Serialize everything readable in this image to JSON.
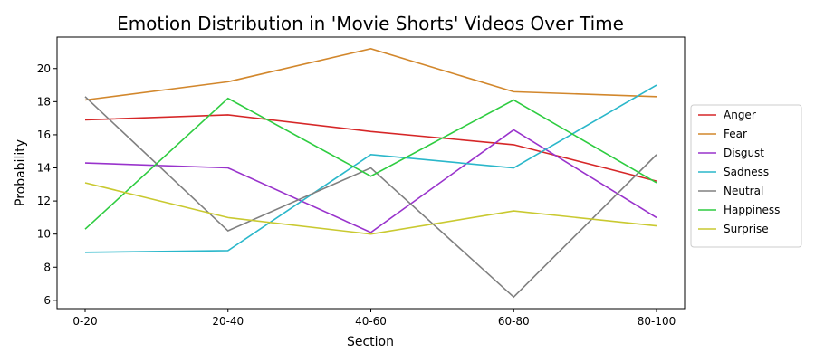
{
  "chart_data": {
    "type": "line",
    "title": "Emotion Distribution in 'Movie Shorts' Videos Over Time",
    "xlabel": "Section",
    "ylabel": "Probability",
    "categories": [
      "0-20",
      "20-40",
      "40-60",
      "60-80",
      "80-100"
    ],
    "ylim": [
      5.5,
      21.9
    ],
    "yticks": [
      6,
      8,
      10,
      12,
      14,
      16,
      18,
      20
    ],
    "grid": false,
    "legend_position": "center-right",
    "series": [
      {
        "name": "Anger",
        "color": "#d62728",
        "values": [
          16.9,
          17.2,
          16.2,
          15.4,
          13.2
        ]
      },
      {
        "name": "Fear",
        "color": "#d2872c",
        "values": [
          18.1,
          19.2,
          21.2,
          18.6,
          18.3
        ]
      },
      {
        "name": "Disgust",
        "color": "#9933cc",
        "values": [
          14.3,
          14.0,
          10.1,
          16.3,
          11.0
        ]
      },
      {
        "name": "Sadness",
        "color": "#2ab7ca",
        "values": [
          8.9,
          9.0,
          14.8,
          14.0,
          19.0
        ]
      },
      {
        "name": "Neutral",
        "color": "#808080",
        "values": [
          18.3,
          10.2,
          14.0,
          6.2,
          14.8
        ]
      },
      {
        "name": "Happiness",
        "color": "#2ecc40",
        "values": [
          10.3,
          18.2,
          13.5,
          18.1,
          13.1
        ]
      },
      {
        "name": "Surprise",
        "color": "#c9c930",
        "values": [
          13.1,
          11.0,
          10.0,
          11.4,
          10.5
        ]
      }
    ]
  }
}
